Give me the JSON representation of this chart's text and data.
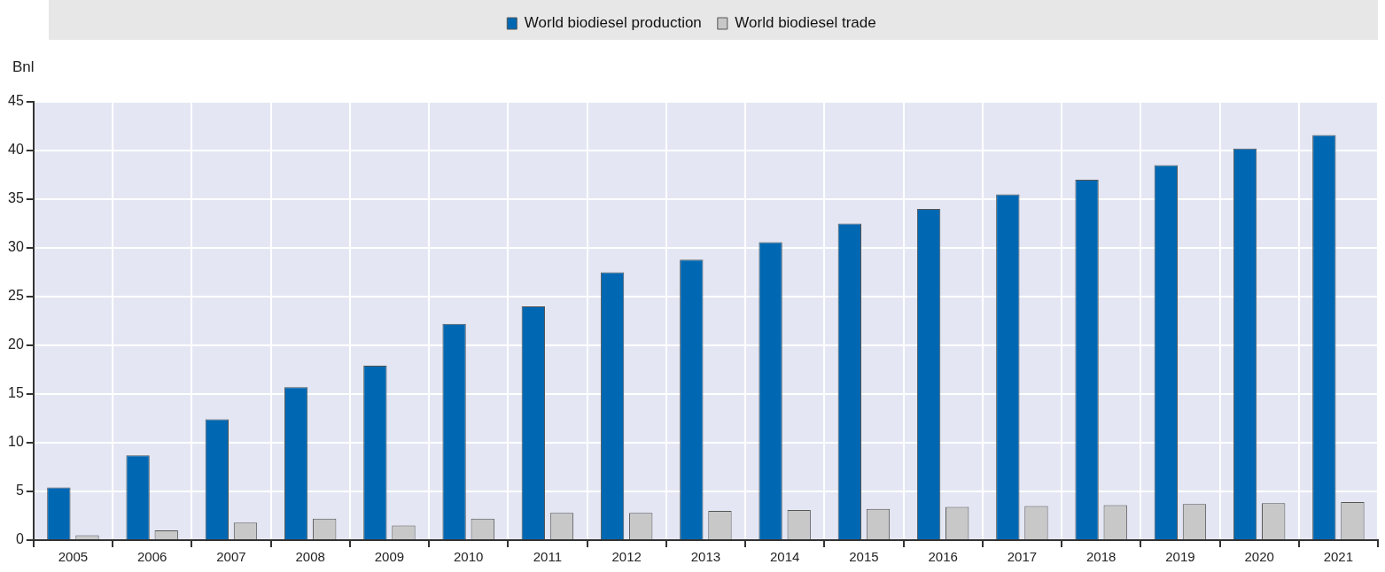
{
  "chart_data": {
    "type": "bar",
    "ylabel": "Bnl",
    "categories": [
      "2005",
      "2006",
      "2007",
      "2008",
      "2009",
      "2010",
      "2011",
      "2012",
      "2013",
      "2014",
      "2015",
      "2016",
      "2017",
      "2018",
      "2019",
      "2020",
      "2021"
    ],
    "series": [
      {
        "name": "World biodiesel production",
        "color": "#0068b3",
        "values": [
          5.4,
          8.7,
          12.4,
          15.7,
          17.9,
          22.2,
          24.0,
          27.5,
          28.8,
          30.6,
          32.5,
          34.0,
          35.5,
          37.0,
          38.5,
          40.2,
          41.6
        ]
      },
      {
        "name": "World biodiesel trade",
        "color": "#c8c8c8",
        "values": [
          0.5,
          1.0,
          1.8,
          2.2,
          1.5,
          2.2,
          2.8,
          2.8,
          3.0,
          3.1,
          3.2,
          3.4,
          3.5,
          3.6,
          3.7,
          3.8,
          3.9
        ]
      }
    ],
    "ylim": [
      0,
      45
    ],
    "yticks": [
      0,
      5,
      10,
      15,
      20,
      25,
      30,
      35,
      40,
      45
    ],
    "grid": true,
    "legend": "top"
  }
}
